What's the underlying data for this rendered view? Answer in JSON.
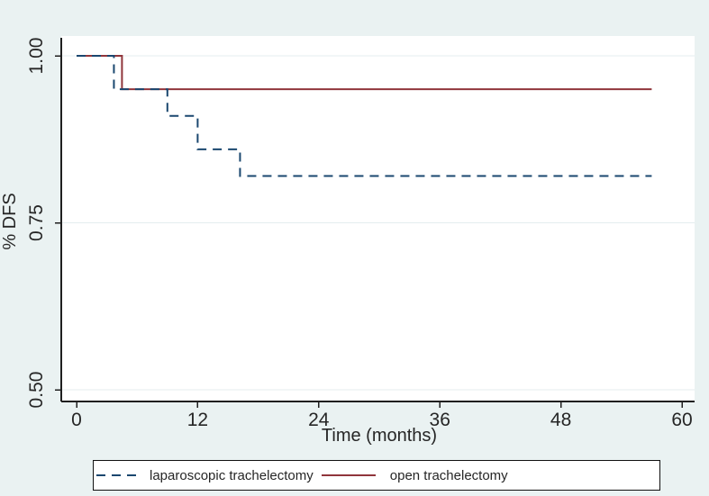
{
  "figure": {
    "background_color": "#eaf2f2",
    "plot_background_color": "#ffffff",
    "grid_color": "#e4edef",
    "axis_color": "#1f1f1f",
    "text_color": "#262626"
  },
  "chart_data": {
    "type": "line",
    "subtype": "kaplan_meier_step",
    "title": "",
    "xlabel": "Time (months)",
    "ylabel": "% DFS",
    "xlim": [
      0,
      60
    ],
    "ylim": [
      0.48,
      1.03
    ],
    "grid": "horizontal",
    "legend_position": "bottom",
    "xticks": [
      {
        "value": 0,
        "label": "0"
      },
      {
        "value": 12,
        "label": "12"
      },
      {
        "value": 24,
        "label": "24"
      },
      {
        "value": 36,
        "label": "36"
      },
      {
        "value": 48,
        "label": "48"
      },
      {
        "value": 60,
        "label": "60"
      }
    ],
    "yticks": [
      {
        "value": 1.0,
        "label": "1.00"
      },
      {
        "value": 0.75,
        "label": "0.75"
      },
      {
        "value": 0.5,
        "label": "0.50"
      }
    ],
    "series": [
      {
        "name": "open trachelectomy",
        "color": "#90353b",
        "line_style": "solid",
        "start_value": 1.0,
        "end_month": 57,
        "drops": [
          {
            "month": 4.5,
            "to": 0.95
          }
        ]
      },
      {
        "name": "laparoscopic trachelectomy",
        "color": "#1a476f",
        "line_style": "dashed",
        "start_value": 1.0,
        "end_month": 57,
        "drops": [
          {
            "month": 3.7,
            "to": 0.95
          },
          {
            "month": 9,
            "to": 0.91
          },
          {
            "month": 12,
            "to": 0.86
          },
          {
            "month": 16.2,
            "to": 0.82
          }
        ]
      }
    ]
  },
  "legend": {
    "items": [
      {
        "label": "laparoscopic trachelectomy",
        "style": "dashed",
        "color": "#1a476f"
      },
      {
        "label": "open trachelectomy",
        "style": "solid",
        "color": "#90353b"
      }
    ]
  }
}
